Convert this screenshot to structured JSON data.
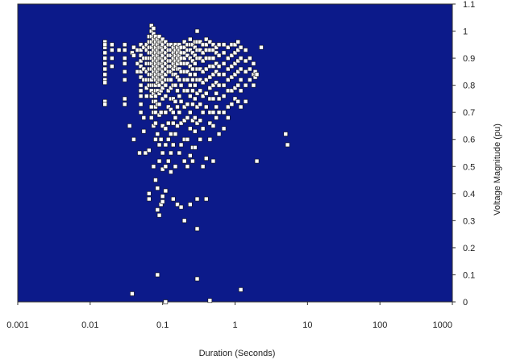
{
  "chart_data": {
    "type": "scatter",
    "title": "",
    "xlabel": "Duration (Seconds)",
    "ylabel": "Voltage Magnitude (pu)",
    "x_scale": "log",
    "xlim": [
      0.001,
      1000
    ],
    "ylim": [
      0,
      1.1
    ],
    "x_ticks": [
      "0.001",
      "0.01",
      "0.1",
      "1",
      "10",
      "100",
      "1000"
    ],
    "y_ticks": [
      "0",
      "0.1",
      "0.2",
      "0.3",
      "0.4",
      "0.5",
      "0.6",
      "0.7",
      "0.8",
      "0.9",
      "1",
      "1.1"
    ],
    "grid": false,
    "legend": "none",
    "colors": {
      "plot_background": "#0c1a8a",
      "marker_fill": "#ffffff",
      "marker_stroke": "#111111"
    },
    "series": [
      {
        "x": [
          0.016,
          0.016,
          0.016,
          0.016,
          0.016,
          0.016,
          0.016,
          0.016,
          0.016,
          0.016,
          0.016,
          0.016,
          0.02,
          0.02,
          0.02,
          0.02,
          0.025,
          0.03,
          0.03,
          0.03,
          0.03,
          0.03,
          0.03,
          0.03,
          0.03,
          0.03,
          0.035,
          0.038,
          0.04,
          0.04,
          0.04,
          0.045,
          0.045,
          0.045,
          0.048,
          0.05,
          0.05,
          0.05,
          0.05,
          0.05,
          0.05,
          0.05,
          0.05,
          0.05,
          0.05,
          0.05,
          0.05,
          0.055,
          0.055,
          0.055,
          0.055,
          0.055,
          0.055,
          0.058,
          0.06,
          0.06,
          0.06,
          0.06,
          0.06,
          0.06,
          0.06,
          0.06,
          0.065,
          0.065,
          0.065,
          0.065,
          0.065,
          0.065,
          0.065,
          0.065,
          0.065,
          0.065,
          0.065,
          0.065,
          0.065,
          0.07,
          0.07,
          0.07,
          0.07,
          0.07,
          0.07,
          0.07,
          0.07,
          0.07,
          0.07,
          0.07,
          0.07,
          0.07,
          0.07,
          0.07,
          0.07,
          0.075,
          0.075,
          0.075,
          0.075,
          0.075,
          0.075,
          0.075,
          0.075,
          0.075,
          0.075,
          0.075,
          0.075,
          0.075,
          0.075,
          0.075,
          0.075,
          0.08,
          0.08,
          0.08,
          0.08,
          0.08,
          0.08,
          0.08,
          0.08,
          0.08,
          0.08,
          0.08,
          0.08,
          0.08,
          0.08,
          0.08,
          0.08,
          0.08,
          0.08,
          0.085,
          0.085,
          0.085,
          0.085,
          0.085,
          0.085,
          0.085,
          0.085,
          0.085,
          0.085,
          0.085,
          0.085,
          0.085,
          0.085,
          0.09,
          0.09,
          0.09,
          0.09,
          0.09,
          0.09,
          0.09,
          0.09,
          0.09,
          0.09,
          0.09,
          0.09,
          0.09,
          0.09,
          0.09,
          0.09,
          0.095,
          0.095,
          0.095,
          0.095,
          0.095,
          0.095,
          0.095,
          0.095,
          0.095,
          0.095,
          0.095,
          0.095,
          0.1,
          0.1,
          0.1,
          0.1,
          0.1,
          0.1,
          0.1,
          0.1,
          0.1,
          0.1,
          0.1,
          0.1,
          0.1,
          0.1,
          0.1,
          0.1,
          0.11,
          0.11,
          0.11,
          0.11,
          0.11,
          0.11,
          0.11,
          0.11,
          0.11,
          0.11,
          0.11,
          0.11,
          0.11,
          0.11,
          0.11,
          0.12,
          0.12,
          0.12,
          0.12,
          0.12,
          0.12,
          0.12,
          0.12,
          0.12,
          0.12,
          0.12,
          0.12,
          0.13,
          0.13,
          0.13,
          0.13,
          0.13,
          0.13,
          0.13,
          0.13,
          0.13,
          0.13,
          0.13,
          0.13,
          0.13,
          0.14,
          0.14,
          0.14,
          0.14,
          0.14,
          0.14,
          0.14,
          0.14,
          0.14,
          0.14,
          0.14,
          0.14,
          0.15,
          0.15,
          0.15,
          0.15,
          0.15,
          0.15,
          0.15,
          0.15,
          0.15,
          0.15,
          0.15,
          0.16,
          0.16,
          0.16,
          0.16,
          0.16,
          0.16,
          0.16,
          0.16,
          0.16,
          0.16,
          0.17,
          0.17,
          0.17,
          0.17,
          0.17,
          0.17,
          0.17,
          0.17,
          0.17,
          0.18,
          0.18,
          0.18,
          0.18,
          0.18,
          0.18,
          0.18,
          0.18,
          0.18,
          0.18,
          0.2,
          0.2,
          0.2,
          0.2,
          0.2,
          0.2,
          0.2,
          0.2,
          0.2,
          0.2,
          0.2,
          0.2,
          0.2,
          0.22,
          0.22,
          0.22,
          0.22,
          0.22,
          0.22,
          0.22,
          0.22,
          0.22,
          0.22,
          0.22,
          0.24,
          0.24,
          0.24,
          0.24,
          0.24,
          0.24,
          0.24,
          0.24,
          0.24,
          0.24,
          0.24,
          0.24,
          0.26,
          0.26,
          0.26,
          0.26,
          0.26,
          0.26,
          0.26,
          0.26,
          0.26,
          0.26,
          0.28,
          0.28,
          0.28,
          0.28,
          0.28,
          0.28,
          0.28,
          0.28,
          0.28,
          0.28,
          0.3,
          0.3,
          0.3,
          0.3,
          0.3,
          0.3,
          0.3,
          0.3,
          0.3,
          0.3,
          0.3,
          0.33,
          0.33,
          0.33,
          0.33,
          0.33,
          0.33,
          0.33,
          0.33,
          0.33,
          0.36,
          0.36,
          0.36,
          0.36,
          0.36,
          0.36,
          0.36,
          0.36,
          0.36,
          0.4,
          0.4,
          0.4,
          0.4,
          0.4,
          0.4,
          0.4,
          0.4,
          0.4,
          0.4,
          0.45,
          0.45,
          0.45,
          0.45,
          0.45,
          0.45,
          0.45,
          0.45,
          0.45,
          0.45,
          0.5,
          0.5,
          0.5,
          0.5,
          0.5,
          0.5,
          0.5,
          0.5,
          0.5,
          0.5,
          0.55,
          0.55,
          0.55,
          0.55,
          0.55,
          0.55,
          0.55,
          0.55,
          0.6,
          0.6,
          0.6,
          0.6,
          0.6,
          0.6,
          0.6,
          0.6,
          0.7,
          0.7,
          0.7,
          0.7,
          0.7,
          0.7,
          0.7,
          0.7,
          0.8,
          0.8,
          0.8,
          0.8,
          0.8,
          0.8,
          0.8,
          0.9,
          0.9,
          0.9,
          0.9,
          0.9,
          0.9,
          1.0,
          1.0,
          1.0,
          1.0,
          1.0,
          1.0,
          1.1,
          1.1,
          1.1,
          1.1,
          1.1,
          1.1,
          1.2,
          1.2,
          1.2,
          1.2,
          1.2,
          1.2,
          1.4,
          1.4,
          1.4,
          1.4,
          1.4,
          1.6,
          1.6,
          1.6,
          1.8,
          1.8,
          1.8,
          1.9,
          1.9,
          2.0,
          2.0,
          2.3,
          5.0,
          5.3,
          0.038,
          0.085,
          0.11,
          0.3,
          0.45,
          1.2
        ],
        "y": [
          0.96,
          0.94,
          0.92,
          0.9,
          0.88,
          0.86,
          0.84,
          0.82,
          0.81,
          0.74,
          0.73,
          0.95,
          0.95,
          0.93,
          0.9,
          0.87,
          0.93,
          0.95,
          0.93,
          0.9,
          0.88,
          0.85,
          0.82,
          0.75,
          0.73,
          0.95,
          0.65,
          0.92,
          0.94,
          0.91,
          0.6,
          0.93,
          0.88,
          0.85,
          0.55,
          0.95,
          0.93,
          0.91,
          0.89,
          0.87,
          0.85,
          0.83,
          0.8,
          0.78,
          0.76,
          0.73,
          0.7,
          0.94,
          0.9,
          0.86,
          0.82,
          0.68,
          0.63,
          0.55,
          0.95,
          0.93,
          0.9,
          0.88,
          0.85,
          0.82,
          0.79,
          0.76,
          0.98,
          0.96,
          0.94,
          0.92,
          0.9,
          0.88,
          0.86,
          0.84,
          0.82,
          0.8,
          0.56,
          0.4,
          0.38,
          1.02,
          1.0,
          0.98,
          0.96,
          0.94,
          0.92,
          0.9,
          0.88,
          0.86,
          0.84,
          0.82,
          0.8,
          0.78,
          0.76,
          0.72,
          0.68,
          1.01,
          0.99,
          0.97,
          0.95,
          0.93,
          0.91,
          0.89,
          0.87,
          0.85,
          0.83,
          0.8,
          0.77,
          0.74,
          0.7,
          0.65,
          0.5,
          0.98,
          0.96,
          0.94,
          0.92,
          0.9,
          0.88,
          0.86,
          0.84,
          0.82,
          0.8,
          0.78,
          0.76,
          0.74,
          0.72,
          0.7,
          0.66,
          0.6,
          0.45,
          0.97,
          0.95,
          0.93,
          0.91,
          0.89,
          0.87,
          0.85,
          0.83,
          0.81,
          0.78,
          0.73,
          0.62,
          0.42,
          0.34,
          0.98,
          0.96,
          0.94,
          0.92,
          0.9,
          0.88,
          0.86,
          0.84,
          0.82,
          0.8,
          0.77,
          0.73,
          0.69,
          0.58,
          0.52,
          0.32,
          0.96,
          0.94,
          0.92,
          0.9,
          0.88,
          0.86,
          0.84,
          0.82,
          0.78,
          0.7,
          0.6,
          0.36,
          0.97,
          0.95,
          0.93,
          0.91,
          0.89,
          0.87,
          0.85,
          0.83,
          0.81,
          0.79,
          0.75,
          0.65,
          0.55,
          0.49,
          0.39,
          0.37,
          0.96,
          0.94,
          0.92,
          0.9,
          0.88,
          0.86,
          0.84,
          0.82,
          0.8,
          0.76,
          0.7,
          0.64,
          0.58,
          0.5,
          0.41,
          0.95,
          0.93,
          0.91,
          0.89,
          0.87,
          0.85,
          0.82,
          0.78,
          0.72,
          0.66,
          0.6,
          0.52,
          0.95,
          0.93,
          0.91,
          0.89,
          0.87,
          0.85,
          0.82,
          0.79,
          0.75,
          0.71,
          0.62,
          0.55,
          0.48,
          0.94,
          0.92,
          0.9,
          0.88,
          0.86,
          0.84,
          0.8,
          0.75,
          0.7,
          0.66,
          0.58,
          0.38,
          0.95,
          0.93,
          0.91,
          0.89,
          0.87,
          0.84,
          0.8,
          0.74,
          0.68,
          0.62,
          0.5,
          0.94,
          0.92,
          0.9,
          0.88,
          0.86,
          0.83,
          0.78,
          0.72,
          0.65,
          0.36,
          0.95,
          0.93,
          0.91,
          0.89,
          0.86,
          0.82,
          0.76,
          0.7,
          0.55,
          0.94,
          0.92,
          0.9,
          0.88,
          0.85,
          0.8,
          0.74,
          0.66,
          0.58,
          0.35,
          0.96,
          0.94,
          0.92,
          0.9,
          0.88,
          0.85,
          0.82,
          0.78,
          0.72,
          0.67,
          0.6,
          0.52,
          0.3,
          0.95,
          0.93,
          0.91,
          0.88,
          0.85,
          0.82,
          0.78,
          0.73,
          0.68,
          0.6,
          0.5,
          0.97,
          0.95,
          0.93,
          0.9,
          0.87,
          0.84,
          0.8,
          0.76,
          0.7,
          0.64,
          0.54,
          0.36,
          0.95,
          0.92,
          0.89,
          0.86,
          0.82,
          0.78,
          0.73,
          0.67,
          0.57,
          0.52,
          0.96,
          0.94,
          0.91,
          0.88,
          0.84,
          0.8,
          0.75,
          0.68,
          0.63,
          0.57,
          1.0,
          0.96,
          0.93,
          0.9,
          0.86,
          0.82,
          0.77,
          0.72,
          0.66,
          0.38,
          0.27,
          0.96,
          0.93,
          0.9,
          0.86,
          0.82,
          0.78,
          0.73,
          0.67,
          0.6,
          0.95,
          0.92,
          0.89,
          0.85,
          0.81,
          0.76,
          0.7,
          0.64,
          0.5,
          0.97,
          0.95,
          0.93,
          0.9,
          0.86,
          0.82,
          0.77,
          0.72,
          0.53,
          0.38,
          0.96,
          0.93,
          0.9,
          0.87,
          0.83,
          0.79,
          0.75,
          0.7,
          0.66,
          0.6,
          0.95,
          0.93,
          0.9,
          0.87,
          0.84,
          0.8,
          0.75,
          0.7,
          0.65,
          0.52,
          0.94,
          0.92,
          0.88,
          0.85,
          0.81,
          0.77,
          0.72,
          0.68,
          0.95,
          0.91,
          0.87,
          0.84,
          0.8,
          0.75,
          0.7,
          0.62,
          0.95,
          0.92,
          0.88,
          0.84,
          0.8,
          0.76,
          0.7,
          0.64,
          0.94,
          0.9,
          0.86,
          0.82,
          0.78,
          0.72,
          0.68,
          0.95,
          0.91,
          0.87,
          0.83,
          0.78,
          0.73,
          0.95,
          0.92,
          0.88,
          0.84,
          0.79,
          0.75,
          0.96,
          0.93,
          0.89,
          0.85,
          0.8,
          0.74,
          0.94,
          0.9,
          0.86,
          0.82,
          0.78,
          0.72,
          0.93,
          0.89,
          0.85,
          0.8,
          0.74,
          0.9,
          0.86,
          0.82,
          0.88,
          0.84,
          0.8,
          0.85,
          0.83,
          0.84,
          0.52,
          0.94,
          0.62,
          0.58,
          0.03,
          0.1,
          0.0,
          0.085,
          0.005,
          0.045
        ]
      }
    ]
  }
}
